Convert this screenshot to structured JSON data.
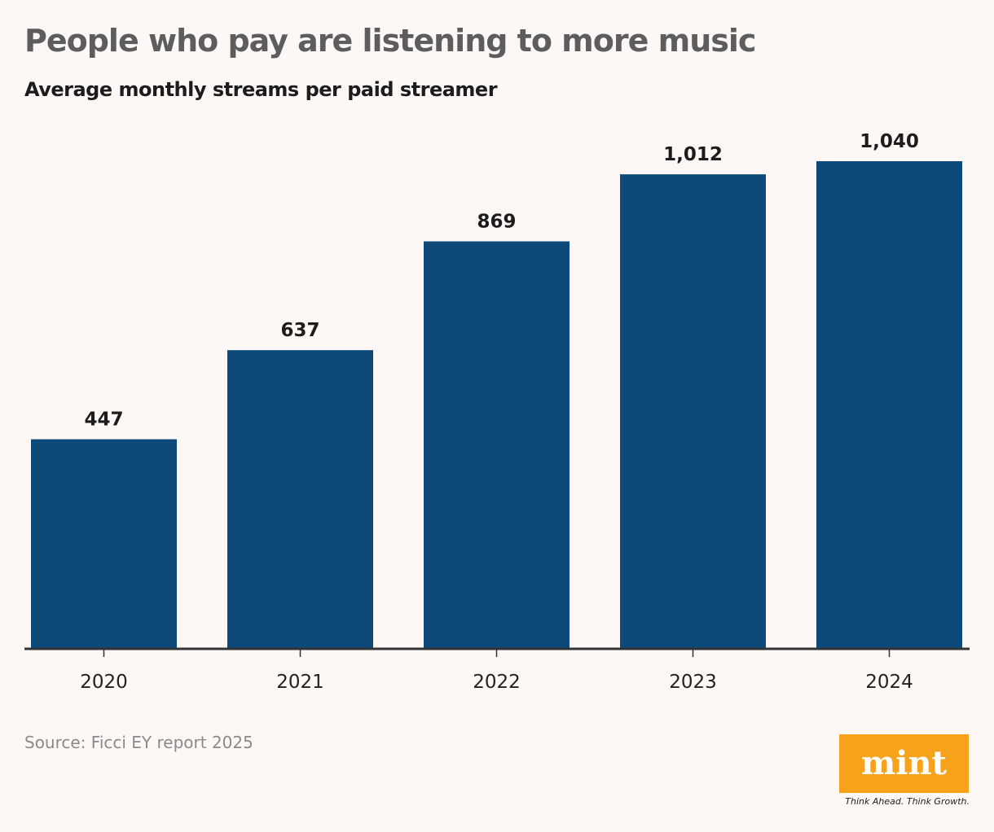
{
  "title": "People who pay are listening to more music",
  "subtitle": "Average monthly streams per paid streamer",
  "source": "Source: Ficci EY report 2025",
  "logo": {
    "text": "mint",
    "tagline": "Think Ahead. Think Growth.",
    "color": "#f7a21b"
  },
  "colors": {
    "bar": "#0d4a79",
    "axis": "#333333",
    "label": "#1c1c1c"
  },
  "chart_data": {
    "type": "bar",
    "categories": [
      "2020",
      "2021",
      "2022",
      "2023",
      "2024"
    ],
    "values": [
      447,
      637,
      869,
      1012,
      1040
    ],
    "value_labels": [
      "447",
      "637",
      "869",
      "1,012",
      "1,040"
    ],
    "title": "People who pay are listening to more music",
    "subtitle": "Average monthly streams per paid streamer",
    "xlabel": "",
    "ylabel": "",
    "ylim": [
      0,
      1040
    ],
    "grid": false,
    "legend": "none"
  }
}
